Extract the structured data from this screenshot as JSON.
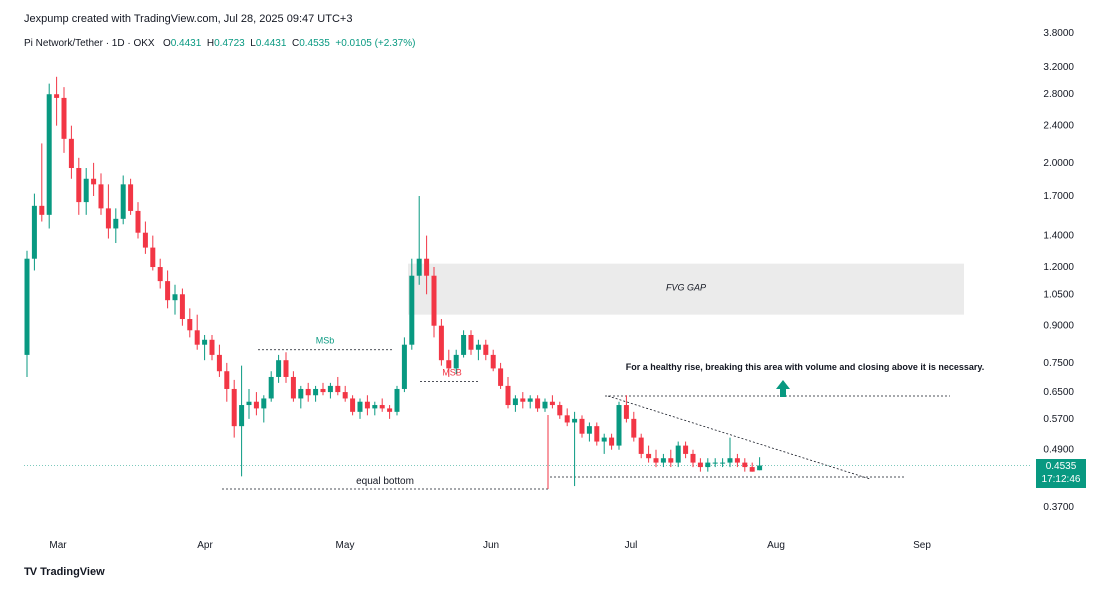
{
  "header": {
    "credit": "Jexpump created with TradingView.com, Jul 28, 2025 09:47 UTC+3"
  },
  "symbol": {
    "name": "Pi Network/Tether · 1D · OKX",
    "o_label": "O",
    "o": "0.4431",
    "h_label": "H",
    "h": "0.4723",
    "l_label": "L",
    "l": "0.4431",
    "c_label": "C",
    "c": "0.4535",
    "change": "+0.0105 (+2.37%)"
  },
  "price_tag": {
    "price": "0.4535",
    "countdown": "17:12:46"
  },
  "footer": {
    "logo": "TradingView",
    "logo_mark": "TV"
  },
  "colors": {
    "up": "#089981",
    "down": "#f23645",
    "accent": "#089981"
  },
  "chart_data": {
    "type": "candlestick",
    "scale": "log",
    "y_ticks": [
      "3.8000",
      "3.2000",
      "2.8000",
      "2.4000",
      "2.0000",
      "1.7000",
      "1.4000",
      "1.2000",
      "1.0500",
      "0.9000",
      "0.7500",
      "0.6500",
      "0.5700",
      "0.4900",
      "0.3700"
    ],
    "x_ticks": [
      "Mar",
      "Apr",
      "May",
      "Jun",
      "Jul",
      "Aug",
      "Sep"
    ],
    "annotations": {
      "fvg": "FVG GAP",
      "msb_left": "MSb",
      "msb_right": "MSB",
      "equal_bottom": "equal bottom",
      "note": "For a healthy rise, breaking this area with volume and closing above it is necessary."
    },
    "ohlc": [
      [
        0.78,
        1.3,
        0.7,
        1.25
      ],
      [
        1.25,
        1.72,
        1.18,
        1.62
      ],
      [
        1.62,
        2.2,
        1.5,
        1.55
      ],
      [
        1.55,
        2.95,
        1.45,
        2.8
      ],
      [
        2.8,
        3.05,
        2.4,
        2.75
      ],
      [
        2.75,
        2.9,
        2.1,
        2.25
      ],
      [
        2.25,
        2.4,
        1.85,
        1.95
      ],
      [
        1.95,
        2.05,
        1.55,
        1.65
      ],
      [
        1.65,
        1.95,
        1.55,
        1.85
      ],
      [
        1.85,
        2.0,
        1.7,
        1.8
      ],
      [
        1.8,
        1.9,
        1.55,
        1.6
      ],
      [
        1.6,
        1.8,
        1.38,
        1.45
      ],
      [
        1.45,
        1.6,
        1.35,
        1.52
      ],
      [
        1.52,
        1.88,
        1.48,
        1.8
      ],
      [
        1.8,
        1.85,
        1.55,
        1.58
      ],
      [
        1.58,
        1.65,
        1.38,
        1.42
      ],
      [
        1.42,
        1.5,
        1.28,
        1.32
      ],
      [
        1.32,
        1.4,
        1.18,
        1.2
      ],
      [
        1.2,
        1.25,
        1.08,
        1.12
      ],
      [
        1.12,
        1.18,
        0.98,
        1.02
      ],
      [
        1.02,
        1.1,
        0.95,
        1.05
      ],
      [
        1.05,
        1.08,
        0.9,
        0.93
      ],
      [
        0.93,
        0.98,
        0.85,
        0.88
      ],
      [
        0.88,
        0.95,
        0.8,
        0.82
      ],
      [
        0.82,
        0.86,
        0.76,
        0.84
      ],
      [
        0.84,
        0.86,
        0.76,
        0.78
      ],
      [
        0.78,
        0.82,
        0.7,
        0.72
      ],
      [
        0.72,
        0.75,
        0.62,
        0.66
      ],
      [
        0.66,
        0.69,
        0.52,
        0.55
      ],
      [
        0.55,
        0.74,
        0.43,
        0.61
      ],
      [
        0.61,
        0.66,
        0.57,
        0.62
      ],
      [
        0.62,
        0.65,
        0.58,
        0.6
      ],
      [
        0.6,
        0.64,
        0.56,
        0.63
      ],
      [
        0.63,
        0.72,
        0.62,
        0.7
      ],
      [
        0.7,
        0.78,
        0.68,
        0.76
      ],
      [
        0.76,
        0.79,
        0.68,
        0.7
      ],
      [
        0.7,
        0.72,
        0.62,
        0.63
      ],
      [
        0.63,
        0.67,
        0.6,
        0.66
      ],
      [
        0.66,
        0.68,
        0.62,
        0.64
      ],
      [
        0.64,
        0.67,
        0.62,
        0.66
      ],
      [
        0.66,
        0.68,
        0.64,
        0.65
      ],
      [
        0.65,
        0.68,
        0.63,
        0.67
      ],
      [
        0.67,
        0.7,
        0.64,
        0.65
      ],
      [
        0.65,
        0.67,
        0.62,
        0.63
      ],
      [
        0.63,
        0.64,
        0.58,
        0.59
      ],
      [
        0.59,
        0.63,
        0.57,
        0.62
      ],
      [
        0.62,
        0.64,
        0.58,
        0.6
      ],
      [
        0.6,
        0.62,
        0.58,
        0.61
      ],
      [
        0.61,
        0.63,
        0.59,
        0.6
      ],
      [
        0.6,
        0.61,
        0.57,
        0.59
      ],
      [
        0.59,
        0.67,
        0.58,
        0.66
      ],
      [
        0.66,
        0.85,
        0.65,
        0.82
      ],
      [
        0.82,
        1.25,
        0.8,
        1.15
      ],
      [
        1.15,
        1.7,
        1.1,
        1.25
      ],
      [
        1.25,
        1.4,
        1.05,
        1.15
      ],
      [
        1.15,
        1.2,
        0.85,
        0.9
      ],
      [
        0.9,
        0.93,
        0.74,
        0.76
      ],
      [
        0.76,
        0.8,
        0.7,
        0.73
      ],
      [
        0.73,
        0.8,
        0.71,
        0.78
      ],
      [
        0.78,
        0.88,
        0.77,
        0.86
      ],
      [
        0.86,
        0.88,
        0.78,
        0.8
      ],
      [
        0.8,
        0.84,
        0.76,
        0.82
      ],
      [
        0.82,
        0.84,
        0.76,
        0.78
      ],
      [
        0.78,
        0.8,
        0.72,
        0.73
      ],
      [
        0.73,
        0.75,
        0.66,
        0.67
      ],
      [
        0.67,
        0.7,
        0.6,
        0.61
      ],
      [
        0.61,
        0.64,
        0.59,
        0.63
      ],
      [
        0.63,
        0.65,
        0.6,
        0.62
      ],
      [
        0.62,
        0.64,
        0.6,
        0.63
      ],
      [
        0.63,
        0.64,
        0.59,
        0.6
      ],
      [
        0.6,
        0.63,
        0.59,
        0.62
      ],
      [
        0.62,
        0.64,
        0.6,
        0.61
      ],
      [
        0.61,
        0.62,
        0.57,
        0.58
      ],
      [
        0.58,
        0.6,
        0.55,
        0.56
      ],
      [
        0.56,
        0.59,
        0.41,
        0.57
      ],
      [
        0.57,
        0.58,
        0.52,
        0.53
      ],
      [
        0.53,
        0.56,
        0.51,
        0.55
      ],
      [
        0.55,
        0.56,
        0.5,
        0.51
      ],
      [
        0.51,
        0.53,
        0.48,
        0.52
      ],
      [
        0.52,
        0.53,
        0.49,
        0.5
      ],
      [
        0.5,
        0.62,
        0.49,
        0.61
      ],
      [
        0.61,
        0.64,
        0.56,
        0.57
      ],
      [
        0.57,
        0.59,
        0.51,
        0.52
      ],
      [
        0.52,
        0.53,
        0.47,
        0.48
      ],
      [
        0.48,
        0.5,
        0.46,
        0.47
      ],
      [
        0.47,
        0.49,
        0.45,
        0.46
      ],
      [
        0.46,
        0.48,
        0.45,
        0.47
      ],
      [
        0.47,
        0.49,
        0.45,
        0.46
      ],
      [
        0.46,
        0.51,
        0.45,
        0.5
      ],
      [
        0.5,
        0.51,
        0.47,
        0.48
      ],
      [
        0.48,
        0.49,
        0.45,
        0.46
      ],
      [
        0.46,
        0.47,
        0.44,
        0.45
      ],
      [
        0.45,
        0.47,
        0.44,
        0.46
      ],
      [
        0.46,
        0.47,
        0.45,
        0.46
      ],
      [
        0.46,
        0.47,
        0.45,
        0.46
      ],
      [
        0.46,
        0.52,
        0.45,
        0.47
      ],
      [
        0.47,
        0.48,
        0.45,
        0.46
      ],
      [
        0.46,
        0.47,
        0.44,
        0.45
      ],
      [
        0.45,
        0.46,
        0.44,
        0.44
      ],
      [
        0.4431,
        0.4723,
        0.4431,
        0.4535
      ]
    ]
  }
}
